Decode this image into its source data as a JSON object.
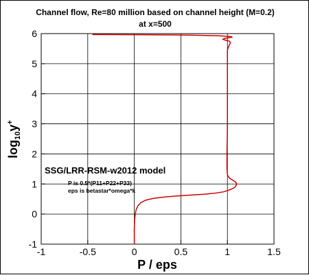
{
  "chart_data": {
    "type": "line",
    "title": "Channel flow, Re=80 million based on channel height (M=0.2)",
    "subtitle": "at x=500",
    "xlabel": "P / eps",
    "ylabel": {
      "base": "log",
      "sub": "10",
      "var": "y",
      "sup": "+"
    },
    "xlim": [
      -1,
      1.5
    ],
    "ylim": [
      -1,
      6
    ],
    "xticks": [
      -1,
      -0.5,
      0,
      0.5,
      1,
      1.5
    ],
    "xtick_labels": [
      "-1",
      "-0.5",
      "0",
      "0.5",
      "1",
      "1.5"
    ],
    "yticks": [
      -1,
      0,
      1,
      2,
      3,
      4,
      5,
      6
    ],
    "ytick_labels": [
      "-1",
      "0",
      "1",
      "2",
      "3",
      "4",
      "5",
      "6"
    ],
    "grid": true,
    "annotations": {
      "model": "SSG/LRR-RSM-w2012 model",
      "p_def": "P is 0.5*(P11+P22+P33)",
      "eps_def": "eps is betastar*omega*k"
    },
    "series": [
      {
        "color": "#cc0000",
        "x": [
          0.0,
          0.0,
          0.003,
          0.01,
          0.02,
          0.04,
          0.07,
          0.12,
          0.2,
          0.3,
          0.45,
          0.6,
          0.75,
          0.88,
          0.96,
          1.02,
          1.07,
          1.09,
          1.1,
          1.09,
          1.06,
          1.02,
          1.0,
          0.995,
          0.995,
          0.998,
          1.0,
          1.0,
          1.0,
          1.0,
          1.0,
          1.0,
          1.0,
          1.0,
          1.01,
          1.02,
          1.03,
          1.03,
          1.02,
          0.98,
          0.95,
          0.97,
          1.01,
          1.05,
          1.04,
          0.9,
          0.6,
          0.2,
          -0.2,
          -0.45
        ],
        "y": [
          -1.0,
          -0.5,
          -0.2,
          0.0,
          0.15,
          0.28,
          0.38,
          0.46,
          0.52,
          0.56,
          0.6,
          0.63,
          0.66,
          0.7,
          0.74,
          0.8,
          0.87,
          0.93,
          1.0,
          1.06,
          1.12,
          1.2,
          1.3,
          1.5,
          2.0,
          2.5,
          3.0,
          3.5,
          4.0,
          4.5,
          5.0,
          5.2,
          5.35,
          5.45,
          5.55,
          5.62,
          5.68,
          5.72,
          5.75,
          5.78,
          5.81,
          5.84,
          5.86,
          5.88,
          5.9,
          5.93,
          5.95,
          5.96,
          5.965,
          5.97
        ]
      }
    ]
  }
}
